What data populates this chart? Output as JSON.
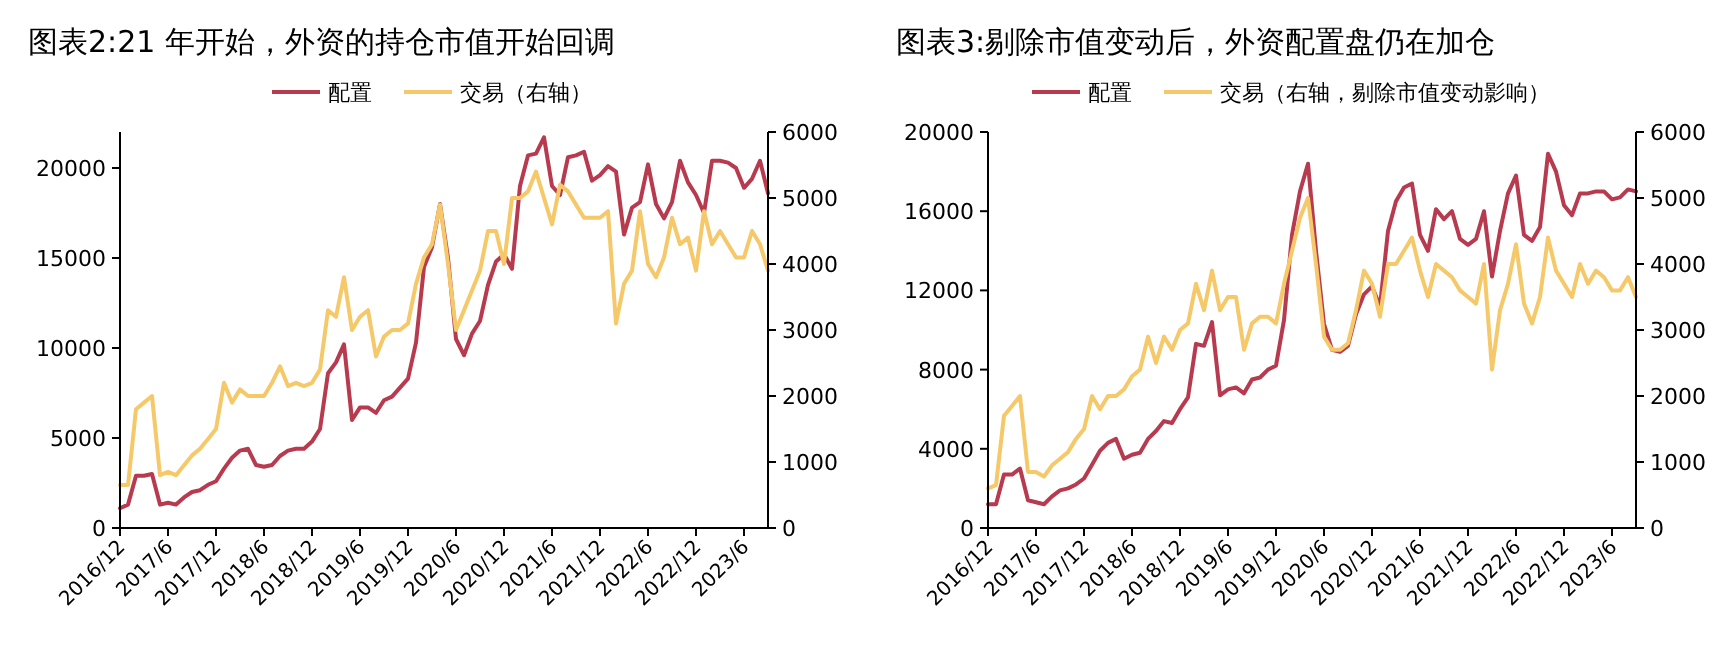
{
  "chart_data": [
    {
      "type": "line",
      "title": "图表2:21 年开始，外资的持仓市值开始回调",
      "legend": "top",
      "grid": false,
      "marker": "none",
      "line_style": "solid",
      "categories": [
        "2016/12",
        null,
        null,
        null,
        null,
        null,
        "2017/6",
        null,
        null,
        null,
        null,
        null,
        "2017/12",
        null,
        null,
        null,
        null,
        null,
        "2018/6",
        null,
        null,
        null,
        null,
        null,
        "2018/12",
        null,
        null,
        null,
        null,
        null,
        "2019/6",
        null,
        null,
        null,
        null,
        null,
        "2019/12",
        null,
        null,
        null,
        null,
        null,
        "2020/6",
        null,
        null,
        null,
        null,
        null,
        "2020/12",
        null,
        null,
        null,
        null,
        null,
        "2021/6",
        null,
        null,
        null,
        null,
        null,
        "2021/12",
        null,
        null,
        null,
        null,
        null,
        "2022/6",
        null,
        null,
        null,
        null,
        null,
        "2022/12",
        null,
        null,
        null,
        null,
        null,
        "2023/6",
        null,
        null,
        null
      ],
      "ylim": [
        0,
        22000
      ],
      "yticks": [
        0,
        5000,
        10000,
        15000,
        20000
      ],
      "y2lim": [
        0,
        6000
      ],
      "y2ticks": [
        0,
        1000,
        2000,
        3000,
        4000,
        5000,
        6000
      ],
      "series": [
        {
          "name": "配置",
          "color": "#b73a4f",
          "values": [
            1100,
            1300,
            2900,
            2900,
            3000,
            1300,
            1400,
            1300,
            1700,
            2000,
            2100,
            2400,
            2600,
            3300,
            3900,
            4300,
            4400,
            3500,
            3400,
            3500,
            4000,
            4300,
            4400,
            4400,
            4800,
            5500,
            8600,
            9200,
            10200,
            6000,
            6700,
            6700,
            6400,
            7100,
            7300,
            7800,
            8300,
            10300,
            14500,
            15600,
            18000,
            15000,
            10500,
            9600,
            10800,
            11500,
            13500,
            14800,
            15200,
            14400,
            19000,
            20700,
            20800,
            21700,
            19000,
            18500,
            20600,
            20700,
            20900,
            19300,
            19600,
            20100,
            19800,
            16300,
            17800,
            18100,
            20200,
            18000,
            17200,
            18100,
            20400,
            19200,
            18500,
            17500,
            20400,
            20400,
            20300,
            20000,
            18900,
            19400,
            20400,
            18600
          ]
        },
        {
          "name": "交易（右轴）",
          "color": "#f5c96a",
          "axis": "y2",
          "values": [
            650,
            650,
            1800,
            1900,
            2000,
            800,
            850,
            800,
            950,
            1100,
            1200,
            1350,
            1500,
            2200,
            1900,
            2100,
            2000,
            2000,
            2000,
            2200,
            2450,
            2150,
            2200,
            2150,
            2200,
            2400,
            3300,
            3200,
            3800,
            3000,
            3200,
            3300,
            2600,
            2900,
            3000,
            3000,
            3100,
            3700,
            4100,
            4300,
            4900,
            4000,
            3000,
            3300,
            3600,
            3900,
            4500,
            4500,
            4000,
            5000,
            5000,
            5100,
            5400,
            5000,
            4600,
            5200,
            5100,
            4900,
            4700,
            4700,
            4700,
            4800,
            3100,
            3700,
            3900,
            4800,
            4000,
            3800,
            4100,
            4700,
            4300,
            4400,
            3900,
            4800,
            4300,
            4500,
            4300,
            4100,
            4100,
            4500,
            4300,
            3900
          ]
        }
      ]
    },
    {
      "type": "line",
      "title": "图表3:剔除市值变动后，外资配置盘仍在加仓",
      "legend": "top",
      "grid": false,
      "marker": "none",
      "line_style": "solid",
      "categories": [
        "2016/12",
        null,
        null,
        null,
        null,
        null,
        "2017/6",
        null,
        null,
        null,
        null,
        null,
        "2017/12",
        null,
        null,
        null,
        null,
        null,
        "2018/6",
        null,
        null,
        null,
        null,
        null,
        "2018/12",
        null,
        null,
        null,
        null,
        null,
        "2019/6",
        null,
        null,
        null,
        null,
        null,
        "2019/12",
        null,
        null,
        null,
        null,
        null,
        "2020/6",
        null,
        null,
        null,
        null,
        null,
        "2020/12",
        null,
        null,
        null,
        null,
        null,
        "2021/6",
        null,
        null,
        null,
        null,
        null,
        "2021/12",
        null,
        null,
        null,
        null,
        null,
        "2022/6",
        null,
        null,
        null,
        null,
        null,
        "2022/12",
        null,
        null,
        null,
        null,
        null,
        "2023/6",
        null,
        null,
        null
      ],
      "ylim": [
        0,
        20000
      ],
      "yticks": [
        0,
        4000,
        8000,
        12000,
        16000,
        20000
      ],
      "y2lim": [
        0,
        6000
      ],
      "y2ticks": [
        0,
        1000,
        2000,
        3000,
        4000,
        5000,
        6000
      ],
      "series": [
        {
          "name": "配置",
          "color": "#b73a4f",
          "values": [
            1200,
            1200,
            2700,
            2700,
            3000,
            1400,
            1300,
            1200,
            1600,
            1900,
            2000,
            2200,
            2500,
            3200,
            3900,
            4300,
            4500,
            3500,
            3700,
            3800,
            4500,
            4900,
            5400,
            5300,
            6000,
            6600,
            9300,
            9200,
            10400,
            6700,
            7000,
            7100,
            6800,
            7500,
            7600,
            8000,
            8200,
            10500,
            14800,
            17000,
            18400,
            14000,
            10300,
            9000,
            8900,
            9200,
            10800,
            11800,
            12200,
            11200,
            15000,
            16500,
            17200,
            17400,
            14800,
            14000,
            16100,
            15600,
            16000,
            14600,
            14300,
            14600,
            16000,
            12700,
            15000,
            16900,
            17800,
            14800,
            14500,
            15200,
            18900,
            18000,
            16300,
            15800,
            16900,
            16900,
            17000,
            17000,
            16600,
            16700,
            17100,
            17000
          ]
        },
        {
          "name": "交易（右轴，剔除市值变动影响）",
          "color": "#f5c96a",
          "axis": "y2",
          "values": [
            600,
            650,
            1700,
            1850,
            2000,
            850,
            850,
            780,
            950,
            1050,
            1150,
            1350,
            1500,
            2000,
            1800,
            2000,
            2000,
            2100,
            2300,
            2400,
            2900,
            2500,
            2900,
            2700,
            3000,
            3100,
            3700,
            3300,
            3900,
            3300,
            3500,
            3500,
            2700,
            3100,
            3200,
            3200,
            3100,
            3700,
            4200,
            4700,
            5000,
            4000,
            2900,
            2700,
            2700,
            2800,
            3300,
            3900,
            3700,
            3200,
            4000,
            4000,
            4200,
            4400,
            3900,
            3500,
            4000,
            3900,
            3800,
            3600,
            3500,
            3400,
            4000,
            2400,
            3300,
            3700,
            4300,
            3400,
            3100,
            3500,
            4400,
            3900,
            3700,
            3500,
            4000,
            3700,
            3900,
            3800,
            3600,
            3600,
            3800,
            3500
          ]
        }
      ]
    }
  ]
}
